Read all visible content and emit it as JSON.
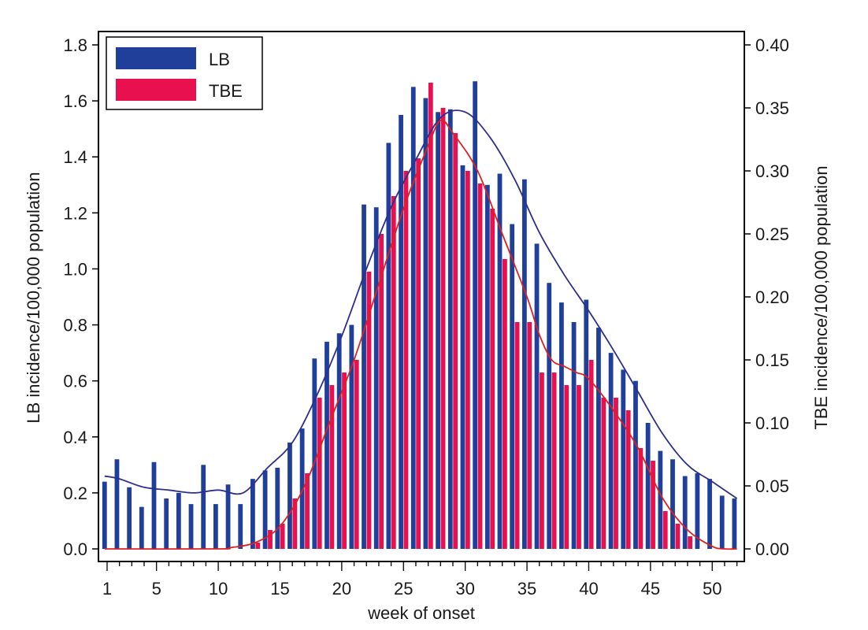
{
  "chart_data": {
    "type": "bar",
    "xlabel": "week of onset",
    "ylabel_left": "LB incidence/100,000 population",
    "ylabel_right": "TBE incidence/100,000 population",
    "x_ticks": [
      1,
      5,
      10,
      15,
      20,
      25,
      30,
      35,
      40,
      45,
      50
    ],
    "y_left_ticks": [
      "0.0",
      "0.2",
      "0.4",
      "0.6",
      "0.8",
      "1.0",
      "1.2",
      "1.4",
      "1.6",
      "1.8"
    ],
    "y_right_ticks": [
      "0.00",
      "0.05",
      "0.10",
      "0.15",
      "0.20",
      "0.25",
      "0.30",
      "0.35",
      "0.40"
    ],
    "ylim_left": [
      0,
      1.8
    ],
    "ylim_right": [
      0,
      0.4
    ],
    "xlim": [
      0.3,
      52.6
    ],
    "legend_position": "top-left",
    "colors": {
      "lb_bar": "#1f3f9a",
      "tbe_bar": "#e8104f",
      "lb_line": "#2e2e8f",
      "tbe_line": "#e02020"
    },
    "weeks": [
      1,
      2,
      3,
      4,
      5,
      6,
      7,
      8,
      9,
      10,
      11,
      12,
      13,
      14,
      15,
      16,
      17,
      18,
      19,
      20,
      21,
      22,
      23,
      24,
      25,
      26,
      27,
      28,
      29,
      30,
      31,
      32,
      33,
      34,
      35,
      36,
      37,
      38,
      39,
      40,
      41,
      42,
      43,
      44,
      45,
      46,
      47,
      48,
      49,
      50,
      51,
      52
    ],
    "series": [
      {
        "name": "LB",
        "axis": "left",
        "values": [
          0.24,
          0.32,
          0.22,
          0.15,
          0.31,
          0.18,
          0.2,
          0.16,
          0.3,
          0.16,
          0.23,
          0.16,
          0.25,
          0.28,
          0.29,
          0.38,
          0.43,
          0.68,
          0.74,
          0.77,
          0.8,
          1.23,
          1.22,
          1.45,
          1.55,
          1.65,
          1.61,
          1.56,
          1.57,
          1.37,
          1.67,
          1.3,
          1.34,
          1.16,
          1.32,
          1.09,
          0.95,
          0.88,
          0.81,
          0.89,
          0.79,
          0.7,
          0.64,
          0.6,
          0.45,
          0.35,
          0.32,
          0.26,
          0.27,
          0.25,
          0.19,
          0.18
        ]
      },
      {
        "name": "TBE",
        "axis": "right",
        "values": [
          0,
          0,
          0,
          0,
          0,
          0,
          0,
          0,
          0,
          0,
          0,
          0,
          0.005,
          0.015,
          0.02,
          0.04,
          0.06,
          0.12,
          0.13,
          0.14,
          0.15,
          0.22,
          0.25,
          0.28,
          0.3,
          0.31,
          0.37,
          0.35,
          0.33,
          0.3,
          0.29,
          0.27,
          0.23,
          0.18,
          0.18,
          0.14,
          0.14,
          0.13,
          0.13,
          0.15,
          0.12,
          0.12,
          0.11,
          0.08,
          0.07,
          0.03,
          0.02,
          0.01,
          0,
          0,
          0,
          0
        ]
      }
    ],
    "smooth_lines": [
      {
        "name": "LB",
        "axis": "left",
        "points": [
          [
            0.8,
            0.26
          ],
          [
            2,
            0.25
          ],
          [
            4,
            0.22
          ],
          [
            6,
            0.21
          ],
          [
            8,
            0.2
          ],
          [
            10,
            0.21
          ],
          [
            12,
            0.2
          ],
          [
            14,
            0.29
          ],
          [
            16,
            0.38
          ],
          [
            18,
            0.55
          ],
          [
            20,
            0.76
          ],
          [
            22,
            1.0
          ],
          [
            24,
            1.22
          ],
          [
            26,
            1.39
          ],
          [
            28,
            1.54
          ],
          [
            30,
            1.56
          ],
          [
            32,
            1.47
          ],
          [
            34,
            1.32
          ],
          [
            36,
            1.13
          ],
          [
            38,
            0.98
          ],
          [
            40,
            0.85
          ],
          [
            42,
            0.71
          ],
          [
            44,
            0.56
          ],
          [
            46,
            0.41
          ],
          [
            48,
            0.3
          ],
          [
            50,
            0.24
          ],
          [
            52,
            0.18
          ]
        ]
      },
      {
        "name": "TBE",
        "axis": "right",
        "points": [
          [
            0.8,
            0
          ],
          [
            10,
            0
          ],
          [
            11,
            0.001
          ],
          [
            13,
            0.005
          ],
          [
            15,
            0.018
          ],
          [
            17,
            0.05
          ],
          [
            19,
            0.1
          ],
          [
            21,
            0.15
          ],
          [
            23,
            0.21
          ],
          [
            25,
            0.27
          ],
          [
            27,
            0.32
          ],
          [
            28,
            0.34
          ],
          [
            29,
            0.33
          ],
          [
            31,
            0.3
          ],
          [
            33,
            0.25
          ],
          [
            35,
            0.2
          ],
          [
            36,
            0.17
          ],
          [
            37,
            0.15
          ],
          [
            38,
            0.145
          ],
          [
            39,
            0.14
          ],
          [
            40,
            0.135
          ],
          [
            42,
            0.11
          ],
          [
            44,
            0.08
          ],
          [
            46,
            0.04
          ],
          [
            48,
            0.015
          ],
          [
            50,
            0.002
          ],
          [
            51,
            0
          ],
          [
            52,
            0
          ]
        ]
      }
    ]
  }
}
